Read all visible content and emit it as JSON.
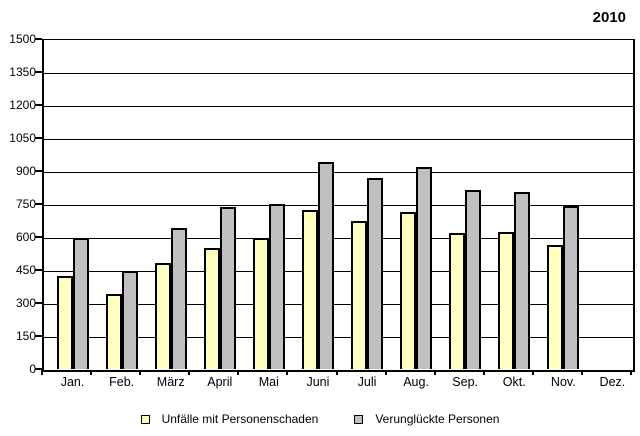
{
  "year_label": "2010",
  "chart_data": {
    "type": "bar",
    "title": "",
    "categories": [
      "Jan.",
      "Feb.",
      "März",
      "April",
      "Mai",
      "Juni",
      "Juli",
      "Aug.",
      "Sep.",
      "Okt.",
      "Nov.",
      "Dez."
    ],
    "series": [
      {
        "name": "Unfälle mit Personenschaden",
        "color": "#FFFFC2",
        "values": [
          425,
          340,
          480,
          550,
          595,
          725,
          675,
          715,
          620,
          625,
          565,
          null
        ]
      },
      {
        "name": "Verunglückte Personen",
        "color": "#C0C0C0",
        "values": [
          595,
          445,
          640,
          735,
          750,
          940,
          870,
          920,
          815,
          805,
          740,
          null
        ]
      }
    ],
    "ylim": [
      0,
      1500
    ],
    "yticks": [
      1500,
      1350,
      1200,
      1050,
      900,
      750,
      600,
      450,
      300,
      150,
      0
    ],
    "grid": "horizontal",
    "legend_position": "bottom",
    "axis_color": "#000000",
    "background_color": "#FFFFFF"
  }
}
